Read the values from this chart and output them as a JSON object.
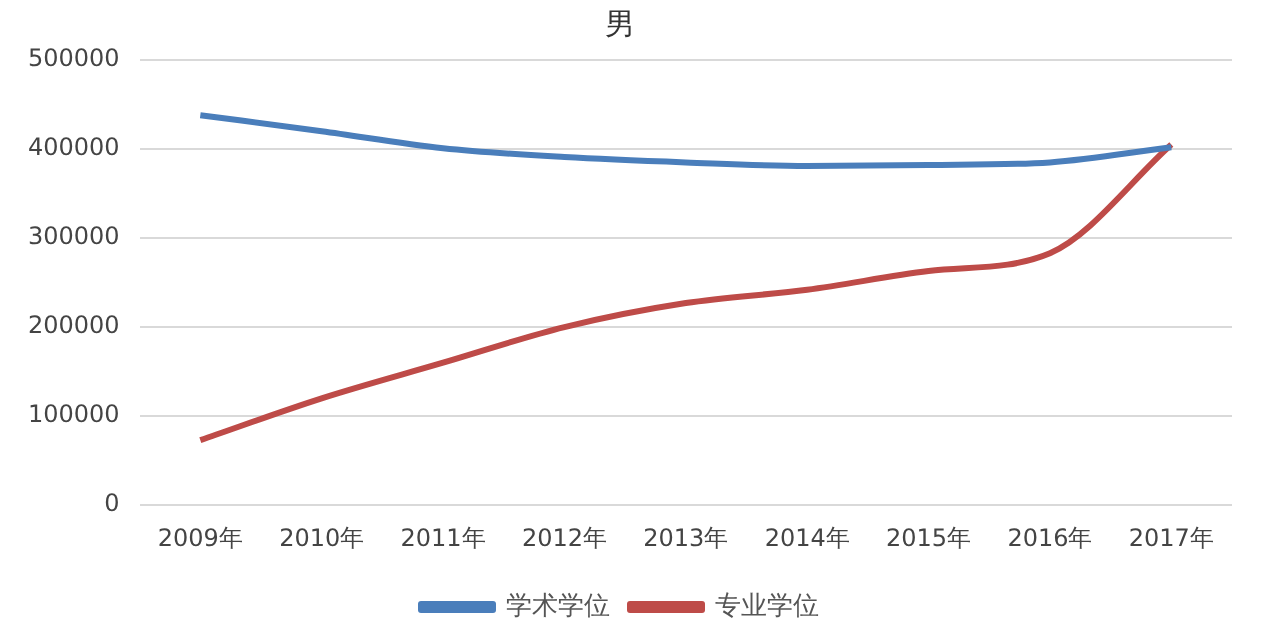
{
  "chart_data": {
    "type": "line",
    "title": "男",
    "categories": [
      "2009年",
      "2010年",
      "2011年",
      "2012年",
      "2013年",
      "2014年",
      "2015年",
      "2016年",
      "2017年"
    ],
    "series": [
      {
        "name": "学术学位",
        "color": "#4a7ebb",
        "values": [
          438000,
          420000,
          401000,
          391000,
          385000,
          381000,
          382000,
          385000,
          402000
        ]
      },
      {
        "name": "专业学位",
        "color": "#be4b48",
        "values": [
          73000,
          120000,
          160000,
          200000,
          227000,
          242000,
          263000,
          283000,
          405000
        ]
      }
    ],
    "ylim": [
      0,
      500000
    ],
    "yticks": [
      0,
      100000,
      200000,
      300000,
      400000,
      500000
    ],
    "grid": "y",
    "legend": "bottom",
    "marker": "none",
    "line_style": "solid"
  }
}
